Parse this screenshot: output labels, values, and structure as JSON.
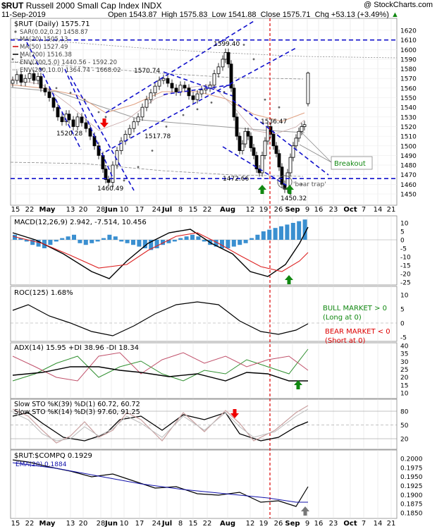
{
  "header": {
    "symbol": "$RUT",
    "name": "Russell 2000 Small Cap Index",
    "exchange": "INDX",
    "copyright": "@ StockCharts.com",
    "date": "11-Sep-2019",
    "open_label": "Open",
    "open": "1543.87",
    "high_label": "High",
    "high": "1575.83",
    "low_label": "Low",
    "low": "1541.88",
    "close_label": "Close",
    "close": "1575.71",
    "chg_label": "Chg",
    "chg": "+53.13 (+3.49%)",
    "chg_arrow": "▲"
  },
  "colors": {
    "price_up": "#000000",
    "trend_dash": "#1111cc",
    "event_line": "#dd0000",
    "macd_hist": "#3a8fd0",
    "sig_red": "#dd2222",
    "arrow_green": "#118811",
    "arrow_red": "#ee0000",
    "bull_text": "#118811",
    "bear_text": "#dd0000"
  },
  "x_axis": {
    "labels": [
      "15",
      "22",
      "May",
      "13",
      "20",
      "28",
      "Jun",
      "10",
      "17",
      "24",
      "Jul",
      "8",
      "15",
      "22",
      "Aug",
      "12",
      "19",
      "26",
      "Sep",
      "9",
      "16",
      "23",
      "Oct",
      "7",
      "14",
      "21"
    ],
    "bold": [
      "May",
      "Jun",
      "Jul",
      "Aug",
      "Sep",
      "Oct"
    ]
  },
  "price_panel": {
    "title": "$RUT (Daily) 1575.71",
    "legend": [
      {
        "text": "SAR(0.02,0.2) 1458.87",
        "icon": "dot"
      },
      {
        "text": "MA(20) 1505.13",
        "icon": "line"
      },
      {
        "text": "MA(50) 1527.49",
        "icon": "line-red"
      },
      {
        "text": "MA(200) 1516.38",
        "icon": "line-black"
      },
      {
        "text": "ENV(200,5.0) 1440.56 - 1592.20",
        "icon": "dash"
      },
      {
        "text": "ENV(200,10.0) 1364.74 - 1668.02",
        "icon": "dots"
      }
    ],
    "y_ticks": [
      "1620",
      "1610",
      "1600",
      "1590",
      "1580",
      "1570",
      "1560",
      "1550",
      "1540",
      "1530",
      "1520",
      "1510",
      "1500",
      "1490",
      "1480",
      "1470",
      "1460",
      "1450"
    ],
    "annotations": [
      "1599.40",
      "1570.74",
      "1520.28",
      "1517.78",
      "1536.47",
      "1472.66",
      "1460.49",
      "1450.32"
    ],
    "breakout_label": "Breakout",
    "bear_trap_label": "'bear trap'"
  },
  "macd_panel": {
    "title": "MACD(12,26,9) 2.942, -7.514, 10.456",
    "y_ticks": [
      "10",
      "5",
      "0",
      "-5",
      "-10",
      "-15",
      "-20",
      "-25"
    ]
  },
  "roc_panel": {
    "title": "ROC(125) 1.68%",
    "y_ticks": [
      "10",
      "5",
      "0",
      "-5"
    ],
    "bull_text": "BULL MARKET > 0",
    "bull_sub": "(Long at 0)",
    "bear_text": "BEAR MARKET < 0",
    "bear_sub": "(Short at 0)"
  },
  "adx_panel": {
    "title": "ADX(14) 15.95 +DI 38.96 -DI 18.34",
    "y_ticks": [
      "40",
      "35",
      "30",
      "25",
      "20",
      "15",
      "10"
    ]
  },
  "sto_panel": {
    "title1": "Slow STO %K(39) %D(1) 60.72, 60.72",
    "title2": "Slow STO %K(14) %D(3) 97.60, 91.25",
    "y_ticks": [
      "80",
      "50",
      "20"
    ]
  },
  "comp_panel": {
    "title": "$RUT:$COMPQ 0.1929",
    "ema_label": "EMA(20) 0.1884",
    "y_ticks": [
      "0.2000",
      "0.1975",
      "0.1950",
      "0.1925",
      "0.1900",
      "0.1875",
      "0.1850"
    ]
  },
  "chart_data": {
    "type": "line",
    "title": "$RUT (Daily) 1575.71",
    "series": [
      {
        "name": "$RUT",
        "dates": [
          "2019-04-15",
          "2019-04-22",
          "2019-05-01",
          "2019-05-13",
          "2019-05-20",
          "2019-05-28",
          "2019-06-03",
          "2019-06-10",
          "2019-06-17",
          "2019-06-24",
          "2019-07-01",
          "2019-07-08",
          "2019-07-15",
          "2019-07-22",
          "2019-07-29",
          "2019-08-05",
          "2019-08-12",
          "2019-08-19",
          "2019-08-26",
          "2019-09-03",
          "2019-09-09",
          "2019-09-11"
        ],
        "values": [
          1580,
          1576,
          1572,
          1530,
          1518,
          1490,
          1462,
          1508,
          1535,
          1550,
          1568,
          1565,
          1550,
          1560,
          1585,
          1505,
          1480,
          1508,
          1472,
          1490,
          1520,
          1575.71
        ]
      },
      {
        "name": "MACD(12,26,9)",
        "values": [
          4,
          3,
          -2,
          -6,
          -12,
          -18,
          -22,
          -10,
          -5,
          0,
          8,
          6,
          2,
          4,
          9,
          -6,
          -15,
          -12,
          -16,
          -10,
          -4,
          2.942
        ]
      },
      {
        "name": "ROC(125)",
        "values": [
          6,
          4,
          3,
          -1,
          -3,
          -5,
          -6,
          -2,
          1,
          3,
          6,
          5,
          3,
          4,
          6,
          -1,
          -4,
          -2,
          -5,
          -3,
          0,
          1.68
        ]
      },
      {
        "name": "ADX(14)",
        "values": [
          18,
          18,
          17,
          22,
          24,
          28,
          30,
          25,
          20,
          15,
          20,
          22,
          20,
          18,
          16,
          18,
          20,
          19,
          20,
          18,
          16,
          15.95
        ]
      },
      {
        "name": "$RUT:$COMPQ",
        "values": [
          0.199,
          0.1985,
          0.1975,
          0.1965,
          0.1955,
          0.195,
          0.1945,
          0.1935,
          0.1925,
          0.1915,
          0.1905,
          0.19,
          0.1895,
          0.189,
          0.1895,
          0.1885,
          0.1875,
          0.1878,
          0.1872,
          0.187,
          0.1878,
          0.1929
        ]
      }
    ],
    "ylim": [
      1440,
      1625
    ],
    "levels": [
      {
        "value": 1610,
        "style": "dashed"
      },
      {
        "value": 1466,
        "style": "dashed"
      }
    ]
  }
}
